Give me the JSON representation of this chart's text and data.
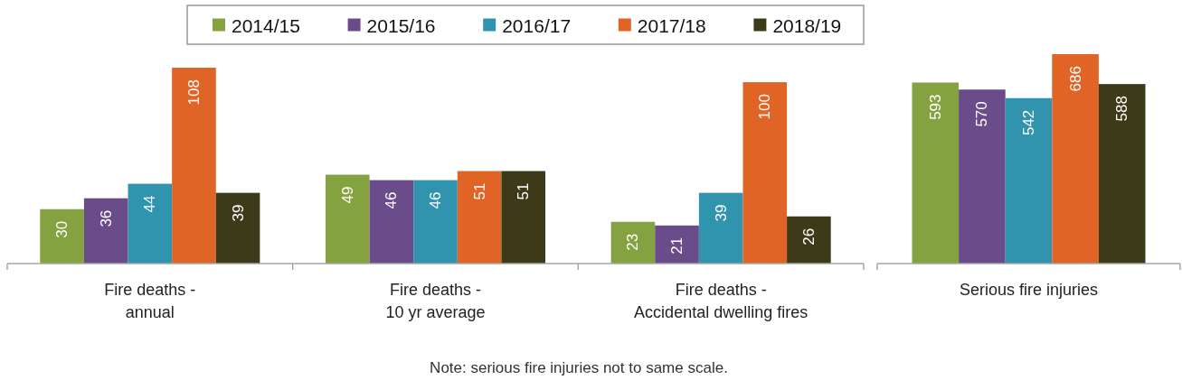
{
  "chart_data": [
    {
      "type": "bar",
      "categories": [
        "Fire deaths -\nannual",
        "Fire deaths -\n10 yr average",
        "Fire deaths -\nAccidental dwelling fires"
      ],
      "series": [
        {
          "name": "2014/15",
          "color": "#84a23f",
          "values": [
            30,
            49,
            23
          ]
        },
        {
          "name": "2015/16",
          "color": "#6a4c8a",
          "values": [
            36,
            46,
            21
          ]
        },
        {
          "name": "2016/17",
          "color": "#3194ae",
          "values": [
            44,
            46,
            39
          ]
        },
        {
          "name": "2017/18",
          "color": "#e06426",
          "values": [
            108,
            51,
            100
          ]
        },
        {
          "name": "2018/19",
          "color": "#3d3a1a",
          "values": [
            39,
            51,
            26
          ]
        }
      ],
      "data_labels": true,
      "legend": "top",
      "annotations": [
        "Note: serious fire injuries not to same scale."
      ]
    },
    {
      "type": "bar",
      "xlabel": "Serious fire injuries",
      "categories": [
        null,
        null,
        null,
        null,
        null
      ],
      "values": [
        593,
        570,
        542,
        686,
        588
      ],
      "colors": [
        "#84a23f",
        "#6a4c8a",
        "#3194ae",
        "#e06426",
        "#3d3a1a"
      ],
      "data_labels": true
    }
  ]
}
